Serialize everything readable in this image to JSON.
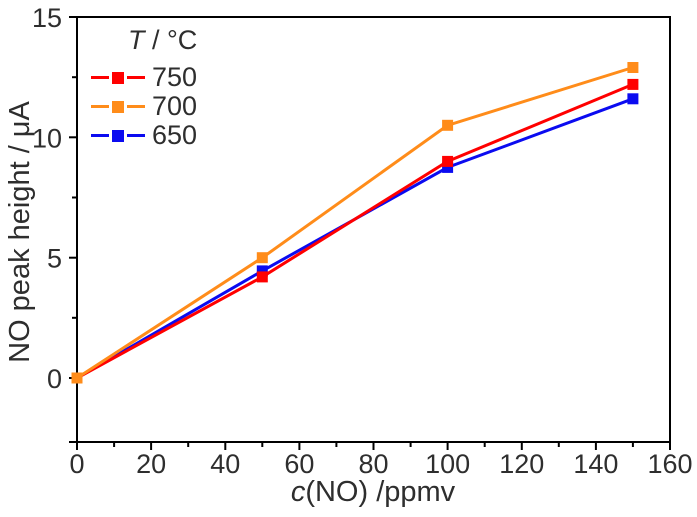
{
  "chart_data": {
    "type": "line",
    "title": "",
    "xlabel": "c(NO) /ppmv",
    "xlabel_italic": "c",
    "xlabel_rest": "(NO) /ppmv",
    "ylabel": "NO peak height / μA",
    "legend_title": "T / °C",
    "legend_title_italic": "T",
    "legend_title_rest": " / °C",
    "legend_position": "top-left-inside",
    "x": [
      0,
      50,
      100,
      150
    ],
    "series": [
      {
        "name": "750",
        "color": "#ff0000",
        "values": [
          0,
          4.2,
          9.0,
          12.2
        ]
      },
      {
        "name": "700",
        "color": "#ff8c1a",
        "values": [
          0,
          5.0,
          10.5,
          12.9
        ]
      },
      {
        "name": "650",
        "color": "#0b0bf0",
        "values": [
          0,
          4.45,
          8.75,
          11.6
        ]
      }
    ],
    "draw_order": [
      "650",
      "750",
      "700"
    ],
    "marker": "square",
    "grid": false,
    "xlim": [
      0,
      160
    ],
    "ylim": [
      -2.66,
      15
    ],
    "x_major_ticks": [
      0,
      20,
      40,
      60,
      80,
      100,
      120,
      140,
      160
    ],
    "x_minor_ticks": [
      10,
      30,
      50,
      70,
      90,
      110,
      130,
      150
    ],
    "y_major_ticks": [
      0,
      5,
      10,
      15
    ],
    "y_minor_ticks": [
      2.5,
      7.5,
      12.5
    ],
    "y_axis_end_tick": true,
    "frame_color": "#000000",
    "text_color": "#2e2e2e"
  }
}
